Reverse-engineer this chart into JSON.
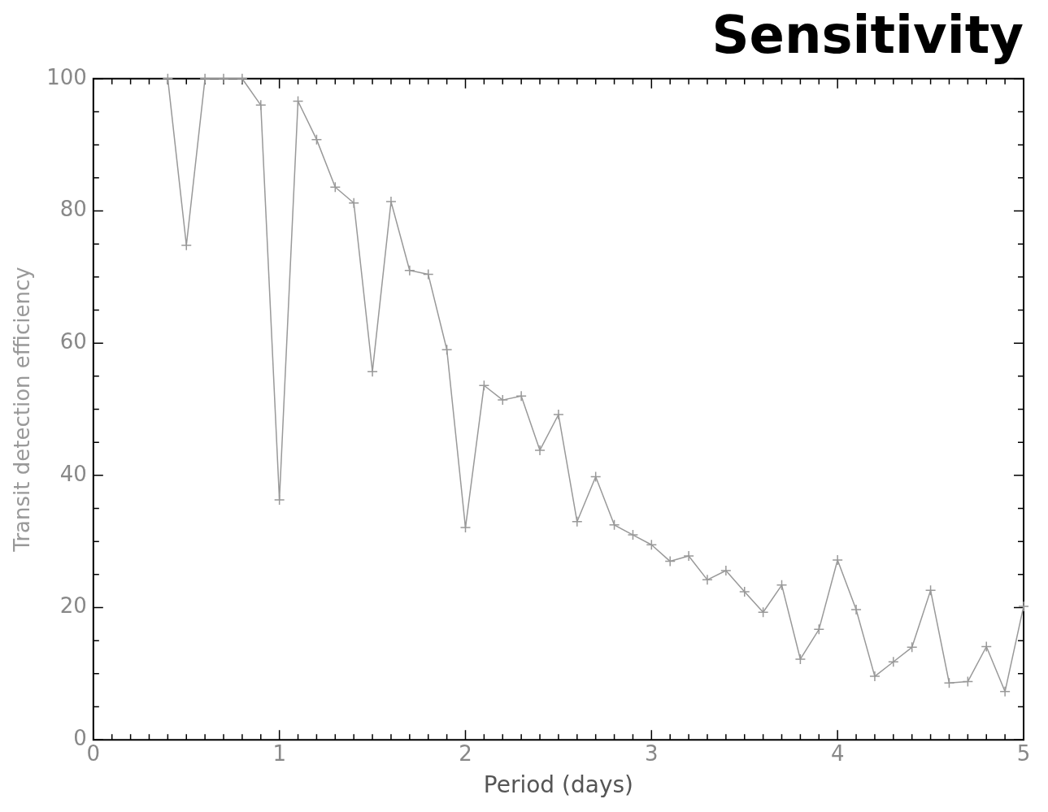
{
  "chart_data": {
    "type": "line",
    "title": "Sensitivity",
    "xlabel": "Period (days)",
    "ylabel": "Transit detection efficiency",
    "marker": "cross",
    "line_style": "solid",
    "grid": false,
    "legend": false,
    "x": [
      0.4,
      0.5,
      0.6,
      0.7,
      0.8,
      0.9,
      1.0,
      1.1,
      1.2,
      1.3,
      1.4,
      1.5,
      1.6,
      1.7,
      1.8,
      1.9,
      2.0,
      2.1,
      2.2,
      2.3,
      2.4,
      2.5,
      2.6,
      2.7,
      2.8,
      2.9,
      3.0,
      3.1,
      3.2,
      3.3,
      3.4,
      3.5,
      3.6,
      3.7,
      3.8,
      3.9,
      4.0,
      4.1,
      4.2,
      4.3,
      4.4,
      4.5,
      4.6,
      4.7,
      4.8,
      4.9,
      5.0
    ],
    "series": [
      {
        "color": "#999999",
        "values": [
          100,
          74.8,
          100,
          100,
          100,
          96,
          36.3,
          96.6,
          90.8,
          83.6,
          81.2,
          55.7,
          81.4,
          71,
          70.4,
          59,
          32.1,
          53.6,
          51.4,
          52,
          43.8,
          49.2,
          33,
          39.8,
          32.5,
          31,
          29.5,
          27,
          27.8,
          24.2,
          25.6,
          22.4,
          19.3,
          23.4,
          12.2,
          16.7,
          27.2,
          19.7,
          9.6,
          11.8,
          14,
          22.6,
          8.6,
          8.8,
          14.1,
          7.3,
          20.2
        ]
      }
    ],
    "xlim": [
      0,
      5
    ],
    "ylim": [
      0,
      100
    ],
    "xticks": [
      0,
      {
        "value": 0.1,
        "label": null
      },
      {
        "value": 0.2,
        "label": null
      },
      {
        "value": 0.3,
        "label": null
      },
      {
        "value": 0.4,
        "label": null
      },
      {
        "value": 0.5,
        "label": null
      },
      {
        "value": 0.6,
        "label": null
      },
      {
        "value": 0.7,
        "label": null
      },
      {
        "value": 0.8,
        "label": null
      },
      {
        "value": 0.9,
        "label": null
      },
      1,
      {
        "value": 1.1,
        "label": null
      },
      {
        "value": 1.2,
        "label": null
      },
      {
        "value": 1.3,
        "label": null
      },
      {
        "value": 1.4,
        "label": null
      },
      {
        "value": 1.5,
        "label": null
      },
      {
        "value": 1.6,
        "label": null
      },
      {
        "value": 1.7,
        "label": null
      },
      {
        "value": 1.8,
        "label": null
      },
      {
        "value": 1.9,
        "label": null
      },
      2,
      {
        "value": 2.1,
        "label": null
      },
      {
        "value": 2.2,
        "label": null
      },
      {
        "value": 2.3,
        "label": null
      },
      {
        "value": 2.4,
        "label": null
      },
      {
        "value": 2.5,
        "label": null
      },
      {
        "value": 2.6,
        "label": null
      },
      {
        "value": 2.7,
        "label": null
      },
      {
        "value": 2.8,
        "label": null
      },
      {
        "value": 2.9,
        "label": null
      },
      3,
      {
        "value": 3.1,
        "label": null
      },
      {
        "value": 3.2,
        "label": null
      },
      {
        "value": 3.3,
        "label": null
      },
      {
        "value": 3.4,
        "label": null
      },
      {
        "value": 3.5,
        "label": null
      },
      {
        "value": 3.6,
        "label": null
      },
      {
        "value": 3.7,
        "label": null
      },
      {
        "value": 3.8,
        "label": null
      },
      {
        "value": 3.9,
        "label": null
      },
      4,
      {
        "value": 4.1,
        "label": null
      },
      {
        "value": 4.2,
        "label": null
      },
      {
        "value": 4.3,
        "label": null
      },
      {
        "value": 4.4,
        "label": null
      },
      {
        "value": 4.5,
        "label": null
      },
      {
        "value": 4.6,
        "label": null
      },
      {
        "value": 4.7,
        "label": null
      },
      {
        "value": 4.8,
        "label": null
      },
      {
        "value": 4.9,
        "label": null
      },
      5
    ],
    "yticks": [
      0,
      {
        "value": 5,
        "label": null
      },
      {
        "value": 10,
        "label": null
      },
      {
        "value": 15,
        "label": null
      },
      20,
      {
        "value": 25,
        "label": null
      },
      {
        "value": 30,
        "label": null
      },
      {
        "value": 35,
        "label": null
      },
      40,
      {
        "value": 45,
        "label": null
      },
      {
        "value": 50,
        "label": null
      },
      {
        "value": 55,
        "label": null
      },
      60,
      {
        "value": 65,
        "label": null
      },
      {
        "value": 70,
        "label": null
      },
      {
        "value": 75,
        "label": null
      },
      80,
      {
        "value": 85,
        "label": null
      },
      {
        "value": 90,
        "label": null
      },
      {
        "value": 95,
        "label": null
      },
      100
    ]
  }
}
